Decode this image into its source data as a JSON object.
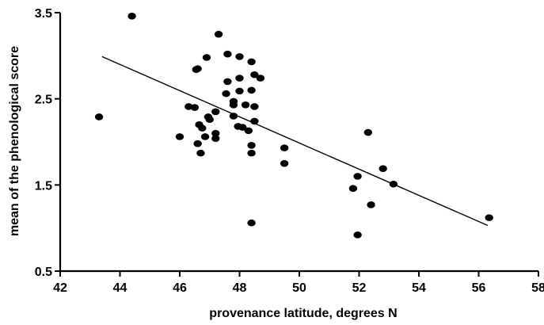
{
  "chart_data": {
    "type": "scatter",
    "xlabel": "provenance latitude, degrees N",
    "ylabel": "mean of the phenological score",
    "xlim": [
      42,
      58
    ],
    "ylim": [
      0.5,
      3.5
    ],
    "x_ticks": [
      "42",
      "44",
      "46",
      "48",
      "50",
      "52",
      "54",
      "56",
      "58"
    ],
    "y_ticks": [
      "0.5",
      "1.5",
      "2.5",
      "3.5"
    ],
    "grid": false,
    "legend": "none",
    "marker_color": "#000000",
    "points": [
      {
        "x": 43.3,
        "y": 2.29
      },
      {
        "x": 44.4,
        "y": 3.46
      },
      {
        "x": 46.0,
        "y": 2.06
      },
      {
        "x": 46.3,
        "y": 2.41
      },
      {
        "x": 46.5,
        "y": 2.4
      },
      {
        "x": 46.55,
        "y": 2.84
      },
      {
        "x": 46.6,
        "y": 2.85
      },
      {
        "x": 46.6,
        "y": 1.98
      },
      {
        "x": 46.65,
        "y": 2.2
      },
      {
        "x": 46.7,
        "y": 1.87
      },
      {
        "x": 46.75,
        "y": 2.16
      },
      {
        "x": 46.85,
        "y": 2.06
      },
      {
        "x": 46.9,
        "y": 2.98
      },
      {
        "x": 46.95,
        "y": 2.29
      },
      {
        "x": 47.0,
        "y": 2.26
      },
      {
        "x": 47.2,
        "y": 2.35
      },
      {
        "x": 47.2,
        "y": 2.1
      },
      {
        "x": 47.2,
        "y": 2.04
      },
      {
        "x": 47.3,
        "y": 3.25
      },
      {
        "x": 47.55,
        "y": 2.56
      },
      {
        "x": 47.6,
        "y": 2.7
      },
      {
        "x": 47.6,
        "y": 3.02
      },
      {
        "x": 47.8,
        "y": 2.43
      },
      {
        "x": 47.8,
        "y": 2.47
      },
      {
        "x": 47.8,
        "y": 2.3
      },
      {
        "x": 47.95,
        "y": 2.18
      },
      {
        "x": 48.0,
        "y": 2.99
      },
      {
        "x": 48.0,
        "y": 2.74
      },
      {
        "x": 48.0,
        "y": 2.59
      },
      {
        "x": 48.1,
        "y": 2.17
      },
      {
        "x": 48.2,
        "y": 2.43
      },
      {
        "x": 48.3,
        "y": 2.13
      },
      {
        "x": 48.4,
        "y": 2.93
      },
      {
        "x": 48.4,
        "y": 2.6
      },
      {
        "x": 48.4,
        "y": 1.96
      },
      {
        "x": 48.4,
        "y": 1.87
      },
      {
        "x": 48.4,
        "y": 1.06
      },
      {
        "x": 48.5,
        "y": 2.78
      },
      {
        "x": 48.5,
        "y": 2.24
      },
      {
        "x": 48.5,
        "y": 2.41
      },
      {
        "x": 48.7,
        "y": 2.74
      },
      {
        "x": 49.5,
        "y": 1.93
      },
      {
        "x": 49.5,
        "y": 1.75
      },
      {
        "x": 51.8,
        "y": 1.46
      },
      {
        "x": 51.95,
        "y": 1.6
      },
      {
        "x": 51.95,
        "y": 0.92
      },
      {
        "x": 52.3,
        "y": 2.11
      },
      {
        "x": 52.4,
        "y": 1.27
      },
      {
        "x": 52.8,
        "y": 1.69
      },
      {
        "x": 53.15,
        "y": 1.51
      },
      {
        "x": 56.35,
        "y": 1.12
      }
    ],
    "trendline": {
      "x": [
        43.4,
        56.3
      ],
      "y": [
        2.99,
        1.03
      ]
    }
  }
}
